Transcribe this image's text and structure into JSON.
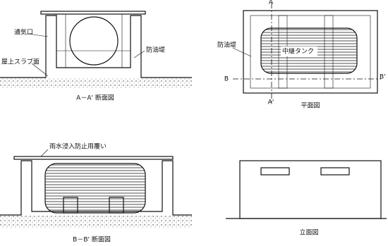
{
  "views": [
    {
      "caption": "A－A' 断面図",
      "labels": [
        "通気口",
        "屋上スラブ面",
        "防油堤"
      ]
    },
    {
      "caption": "平面図",
      "labels": [
        "防油堤",
        "中継タンク"
      ],
      "section_marks": [
        "A",
        "A'",
        "B",
        "B'"
      ]
    },
    {
      "caption": "B－B' 断面図",
      "labels": [
        "雨水浸入防止用覆い"
      ]
    },
    {
      "caption": "立面図"
    }
  ]
}
